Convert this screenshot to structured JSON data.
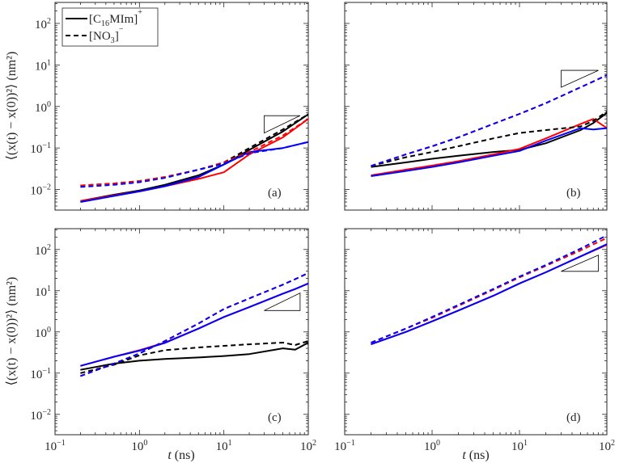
{
  "figure": {
    "y_axis_label": "⟨(x(t) − x(0))²⟩ (nm²)",
    "x_axis_label_var": "t",
    "x_axis_label_unit": " (ns)"
  },
  "colors": {
    "black": "#000000",
    "red": "#ff0000",
    "blue": "#0000ff",
    "axis": "#262626"
  },
  "chart_data": [
    {
      "type": "line",
      "panel_label": "(a)",
      "xscale": "log",
      "yscale": "log",
      "xlim": [
        0.1,
        100
      ],
      "ylim": [
        0.0032,
        320
      ],
      "grid": false,
      "x": [
        0.2,
        0.5,
        1,
        2,
        5,
        10,
        20,
        50,
        100
      ],
      "legend": {
        "placement": "top-left",
        "entries": [
          {
            "style": "solid",
            "parts": [
              {
                "t": "[C"
              },
              {
                "t": "16",
                "sub": true
              },
              {
                "t": "MIm]"
              },
              {
                "t": "+",
                "sup": true
              }
            ]
          },
          {
            "style": "dashed",
            "parts": [
              {
                "t": "[NO"
              },
              {
                "t": "3",
                "sub": true
              },
              {
                "t": "]"
              },
              {
                "t": "−",
                "sup": true
              }
            ]
          }
        ]
      },
      "series": [
        {
          "color": "#000000",
          "style": "solid",
          "values": [
            0.0053,
            0.0075,
            0.0095,
            0.013,
            0.022,
            0.04,
            0.09,
            0.25,
            0.65
          ]
        },
        {
          "color": "#ff0000",
          "style": "solid",
          "values": [
            0.0053,
            0.0072,
            0.009,
            0.012,
            0.018,
            0.026,
            0.07,
            0.18,
            0.5
          ]
        },
        {
          "color": "#0000ff",
          "style": "solid",
          "values": [
            0.005,
            0.007,
            0.009,
            0.012,
            0.02,
            0.04,
            0.08,
            0.1,
            0.14
          ]
        },
        {
          "color": "#000000",
          "style": "dashed",
          "values": [
            0.0125,
            0.014,
            0.016,
            0.02,
            0.03,
            0.045,
            0.1,
            0.28,
            0.65
          ]
        },
        {
          "color": "#ff0000",
          "style": "dashed",
          "values": [
            0.0125,
            0.014,
            0.016,
            0.02,
            0.03,
            0.045,
            0.08,
            0.2,
            0.5
          ]
        },
        {
          "color": "#0000ff",
          "style": "dashed",
          "values": [
            0.0115,
            0.013,
            0.015,
            0.019,
            0.03,
            0.042,
            0.075,
            0.1,
            0.14
          ]
        }
      ],
      "slope_triangle": {
        "t": [
          30,
          80
        ],
        "y": [
          0.23,
          0.6
        ],
        "corner": "top-left"
      }
    },
    {
      "type": "line",
      "panel_label": "(b)",
      "xscale": "log",
      "yscale": "log",
      "xlim": [
        0.1,
        100
      ],
      "ylim": [
        0.0032,
        320
      ],
      "grid": false,
      "x": [
        0.2,
        0.5,
        1,
        2,
        5,
        10,
        20,
        50,
        70,
        100
      ],
      "series": [
        {
          "color": "#000000",
          "style": "solid",
          "values": [
            0.035,
            0.045,
            0.055,
            0.065,
            0.08,
            0.09,
            0.13,
            0.27,
            0.4,
            0.7
          ]
        },
        {
          "color": "#ff0000",
          "style": "solid",
          "values": [
            0.022,
            0.03,
            0.038,
            0.048,
            0.07,
            0.095,
            0.17,
            0.38,
            0.5,
            0.3
          ]
        },
        {
          "color": "#0000ff",
          "style": "solid",
          "values": [
            0.021,
            0.028,
            0.035,
            0.045,
            0.065,
            0.085,
            0.15,
            0.3,
            0.28,
            0.3
          ]
        },
        {
          "color": "#000000",
          "style": "dashed",
          "values": [
            0.037,
            0.06,
            0.08,
            0.11,
            0.17,
            0.23,
            0.27,
            0.33,
            0.45,
            0.75
          ]
        },
        {
          "color": "#ff0000",
          "style": "dashed",
          "values": [
            0.037,
            0.07,
            0.11,
            0.18,
            0.38,
            0.66,
            1.2,
            2.9,
            4.0,
            5.7
          ]
        },
        {
          "color": "#0000ff",
          "style": "dashed",
          "values": [
            0.037,
            0.07,
            0.11,
            0.18,
            0.38,
            0.66,
            1.2,
            2.9,
            4.0,
            5.7
          ]
        }
      ],
      "slope_triangle": {
        "t": [
          30,
          80
        ],
        "y": [
          2.9,
          7.4
        ],
        "corner": "top-left"
      }
    },
    {
      "type": "line",
      "panel_label": "(c)",
      "xscale": "log",
      "yscale": "log",
      "xlim": [
        0.1,
        100
      ],
      "ylim": [
        0.0032,
        320
      ],
      "grid": false,
      "x": [
        0.2,
        0.5,
        1,
        2,
        5,
        10,
        20,
        50,
        70,
        100
      ],
      "series": [
        {
          "color": "#000000",
          "style": "solid",
          "values": [
            0.12,
            0.17,
            0.2,
            0.22,
            0.24,
            0.26,
            0.29,
            0.4,
            0.37,
            0.55
          ]
        },
        {
          "color": "#ff0000",
          "style": "solid",
          "values": [
            0.15,
            0.25,
            0.36,
            0.55,
            1.2,
            2.3,
            4.0,
            8.5,
            11,
            15
          ]
        },
        {
          "color": "#0000ff",
          "style": "solid",
          "values": [
            0.15,
            0.25,
            0.35,
            0.54,
            1.2,
            2.3,
            4.0,
            8.5,
            11,
            15
          ]
        },
        {
          "color": "#000000",
          "style": "dashed",
          "values": [
            0.1,
            0.16,
            0.27,
            0.36,
            0.42,
            0.46,
            0.5,
            0.55,
            0.48,
            0.6
          ]
        },
        {
          "color": "#ff0000",
          "style": "dashed",
          "values": [
            0.085,
            0.17,
            0.3,
            0.6,
            1.6,
            3.6,
            6.5,
            14,
            19,
            27
          ]
        },
        {
          "color": "#0000ff",
          "style": "dashed",
          "values": [
            0.085,
            0.17,
            0.3,
            0.6,
            1.6,
            3.6,
            6.5,
            14,
            19,
            27
          ]
        }
      ],
      "slope_triangle": {
        "t": [
          30,
          80
        ],
        "y": [
          3.3,
          8.8
        ],
        "corner": "bottom-right"
      }
    },
    {
      "type": "line",
      "panel_label": "(d)",
      "xscale": "log",
      "yscale": "log",
      "xlim": [
        0.1,
        100
      ],
      "ylim": [
        0.0032,
        320
      ],
      "grid": false,
      "x": [
        0.2,
        0.5,
        1,
        2,
        5,
        10,
        20,
        50,
        100
      ],
      "series": [
        {
          "color": "#ff0000",
          "style": "solid",
          "values": [
            0.5,
            1.0,
            1.8,
            3.3,
            7.5,
            15,
            28,
            68,
            130
          ]
        },
        {
          "color": "#0000ff",
          "style": "solid",
          "values": [
            0.5,
            1.0,
            1.8,
            3.3,
            7.5,
            15,
            28,
            68,
            135
          ]
        },
        {
          "color": "#ff0000",
          "style": "dashed",
          "values": [
            0.55,
            1.2,
            2.2,
            4.3,
            10.5,
            21,
            40,
            95,
            190
          ]
        },
        {
          "color": "#0000ff",
          "style": "dashed",
          "values": [
            0.55,
            1.2,
            2.3,
            4.5,
            11,
            22,
            42,
            105,
            220
          ]
        }
      ],
      "slope_triangle": {
        "t": [
          30,
          80
        ],
        "y": [
          29.5,
          73
        ],
        "corner": "bottom-right"
      }
    }
  ],
  "ticks": {
    "x": [
      {
        "base": "10",
        "exp": "−1"
      },
      {
        "base": "10",
        "exp": "0"
      },
      {
        "base": "10",
        "exp": "1"
      },
      {
        "base": "10",
        "exp": "2"
      }
    ],
    "y": [
      {
        "base": "10",
        "exp": "−2"
      },
      {
        "base": "10",
        "exp": "−1"
      },
      {
        "base": "10",
        "exp": "0"
      },
      {
        "base": "10",
        "exp": "1"
      },
      {
        "base": "10",
        "exp": "2"
      }
    ]
  }
}
